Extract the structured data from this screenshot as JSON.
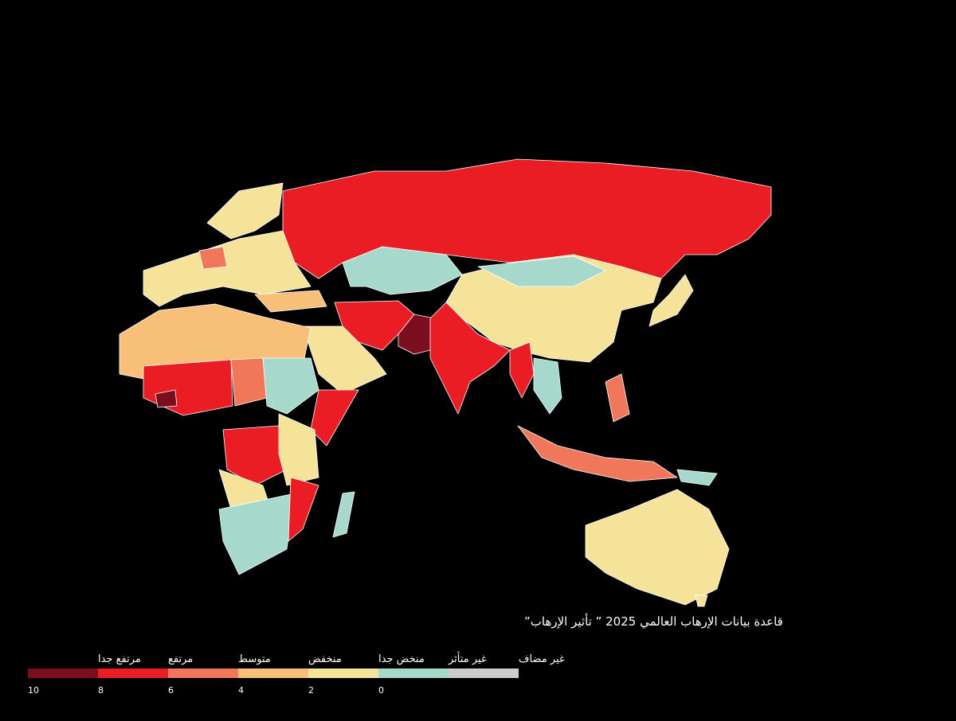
{
  "title": "قاعدة بيانات الإرهاب العالمي 2025 ” تأثير الإرهاب”",
  "legend": {
    "items": [
      {
        "label": "مرتفع جدا",
        "color": "#7a0d1e"
      },
      {
        "label": "مرتفع",
        "color": "#ea1c24"
      },
      {
        "label": "متوسط",
        "color": "#f0775a"
      },
      {
        "label": "منخفض",
        "color": "#f7bf78"
      },
      {
        "label": "منخض جدا",
        "color": "#f6e39a"
      },
      {
        "label": "غير متأثر",
        "color": "#a6d9cb"
      },
      {
        "label": "غير مضاف",
        "color": "#cccccc"
      }
    ],
    "ticks": [
      10,
      8,
      6,
      4,
      2,
      0
    ]
  }
}
